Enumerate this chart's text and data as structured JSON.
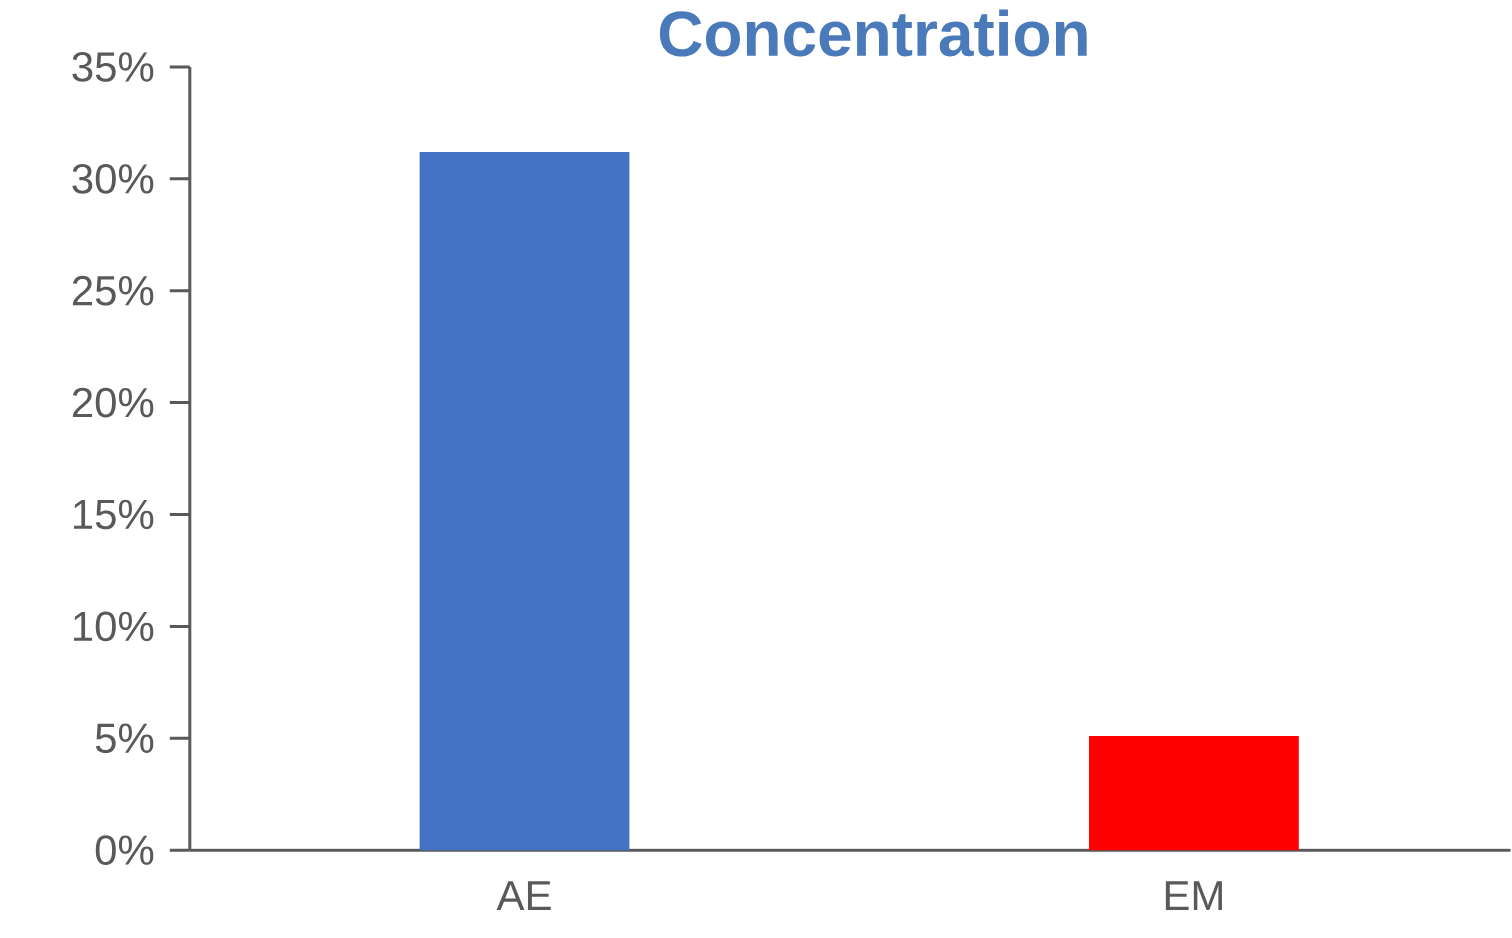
{
  "chart_data": {
    "type": "bar",
    "title": "Concentration",
    "categories": [
      "AE",
      "EM"
    ],
    "values": [
      31.2,
      5.1
    ],
    "colors": [
      "#4472c4",
      "#ff0000"
    ],
    "ylim": [
      0,
      35
    ],
    "yticks": [
      {
        "value": 0,
        "label": "0%"
      },
      {
        "value": 5,
        "label": "5%"
      },
      {
        "value": 10,
        "label": "10%"
      },
      {
        "value": 15,
        "label": "15%"
      },
      {
        "value": 20,
        "label": "20%"
      },
      {
        "value": 25,
        "label": "25%"
      },
      {
        "value": 30,
        "label": "30%"
      },
      {
        "value": 35,
        "label": "35%"
      }
    ]
  }
}
